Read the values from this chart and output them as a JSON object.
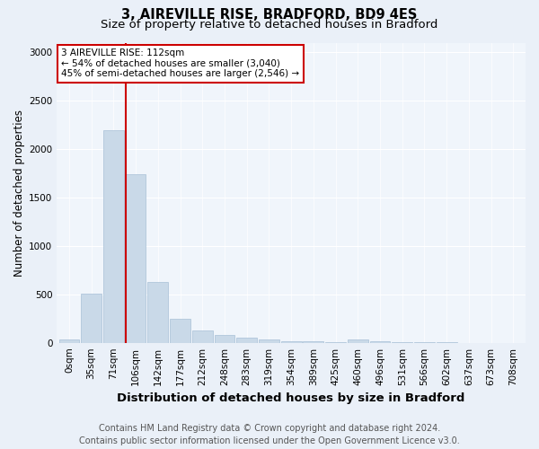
{
  "title1": "3, AIREVILLE RISE, BRADFORD, BD9 4ES",
  "title2": "Size of property relative to detached houses in Bradford",
  "xlabel": "Distribution of detached houses by size in Bradford",
  "ylabel": "Number of detached properties",
  "bin_labels": [
    "0sqm",
    "35sqm",
    "71sqm",
    "106sqm",
    "142sqm",
    "177sqm",
    "212sqm",
    "248sqm",
    "283sqm",
    "319sqm",
    "354sqm",
    "389sqm",
    "425sqm",
    "460sqm",
    "496sqm",
    "531sqm",
    "566sqm",
    "602sqm",
    "637sqm",
    "673sqm",
    "708sqm"
  ],
  "bar_values": [
    30,
    510,
    2200,
    1740,
    630,
    250,
    130,
    85,
    50,
    35,
    20,
    15,
    10,
    30,
    20,
    5,
    2,
    2,
    1,
    1,
    0
  ],
  "bar_color": "#c9d9e8",
  "bar_edge_color": "#a8c0d6",
  "red_line_x": 3.0,
  "annotation_text": "3 AIREVILLE RISE: 112sqm\n← 54% of detached houses are smaller (3,040)\n45% of semi-detached houses are larger (2,546) →",
  "annotation_box_color": "#ffffff",
  "annotation_box_edge": "#cc0000",
  "ylim": [
    0,
    3100
  ],
  "yticks": [
    0,
    500,
    1000,
    1500,
    2000,
    2500,
    3000
  ],
  "footer": "Contains HM Land Registry data © Crown copyright and database right 2024.\nContains public sector information licensed under the Open Government Licence v3.0.",
  "bg_color": "#eaf0f8",
  "plot_bg_color": "#f0f5fb",
  "title1_fontsize": 10.5,
  "title2_fontsize": 9.5,
  "xlabel_fontsize": 9.5,
  "ylabel_fontsize": 8.5,
  "tick_fontsize": 7.5,
  "footer_fontsize": 7,
  "annotation_fontsize": 7.5
}
